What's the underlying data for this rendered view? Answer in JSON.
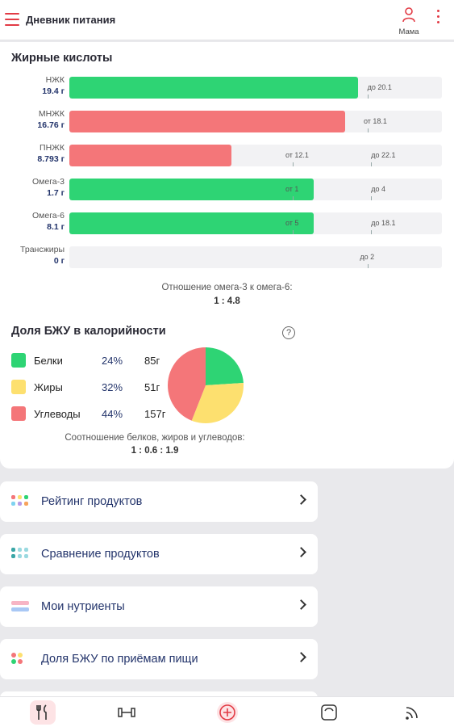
{
  "header": {
    "title": "Дневник питания",
    "user_label": "Мама"
  },
  "fatty_acids": {
    "title": "Жирные кислоты",
    "rows": [
      {
        "name": "НЖК",
        "value": "19.4 г",
        "color": "green",
        "fill_fraction": 0.775,
        "labels": [
          {
            "text": "до 20.1",
            "at": 0.8
          }
        ],
        "ticks": [
          0.8
        ]
      },
      {
        "name": "МНЖК",
        "value": "16.76 г",
        "color": "red",
        "fill_fraction": 0.74,
        "labels": [
          {
            "text": "от 18.1",
            "at": 0.79
          }
        ],
        "ticks": [
          0.8
        ]
      },
      {
        "name": "ПНЖК",
        "value": "8.793 г",
        "color": "red",
        "fill_fraction": 0.435,
        "labels": [
          {
            "text": "от 12.1",
            "at": 0.58
          },
          {
            "text": "до 22.1",
            "at": 0.81
          }
        ],
        "ticks": [
          0.6,
          0.81
        ]
      },
      {
        "name": "Омега-3",
        "value": "1.7 г",
        "color": "green",
        "fill_fraction": 0.655,
        "labels": [
          {
            "text": "от 1",
            "at": 0.58
          },
          {
            "text": "до 4",
            "at": 0.81
          }
        ],
        "ticks": [
          0.6,
          0.81
        ]
      },
      {
        "name": "Омега-6",
        "value": "8.1 г",
        "color": "green",
        "fill_fraction": 0.655,
        "labels": [
          {
            "text": "от 5",
            "at": 0.58
          },
          {
            "text": "до 18.1",
            "at": 0.81
          }
        ],
        "ticks": [
          0.6,
          0.81
        ]
      },
      {
        "name": "Трансжиры",
        "value": "0 г",
        "color": "none",
        "fill_fraction": 0,
        "labels": [
          {
            "text": "до 2",
            "at": 0.78
          }
        ],
        "ticks": [
          0.8
        ]
      }
    ],
    "ratio_caption": "Отношение омега-3 к омега-6:",
    "ratio_value": "1 : 4.8"
  },
  "bju": {
    "title": "Доля БЖУ в калорийности",
    "items": [
      {
        "name": "Белки",
        "pct": "24%",
        "grams": "85г",
        "color": "#2ed474"
      },
      {
        "name": "Жиры",
        "pct": "32%",
        "grams": "51г",
        "color": "#fde06f"
      },
      {
        "name": "Углеводы",
        "pct": "44%",
        "grams": "157г",
        "color": "#f47679"
      }
    ],
    "ratio_caption": "Соотношение белков, жиров и углеводов:",
    "ratio_value": "1 : 0.6 : 1.9"
  },
  "chart_data": {
    "type": "pie",
    "categories": [
      "Белки",
      "Жиры",
      "Углеводы"
    ],
    "values": [
      24,
      32,
      44
    ]
  },
  "menu": {
    "items": [
      {
        "label": "Рейтинг продуктов"
      },
      {
        "label": "Сравнение продуктов"
      },
      {
        "label": "Мои нутриенты"
      },
      {
        "label": "Доля БЖУ по приёмам пищи"
      }
    ]
  },
  "bottom_nav": {
    "items": [
      {
        "icon": "fork-knife-icon",
        "active": true
      },
      {
        "icon": "dumbbell-icon",
        "active": false
      },
      {
        "icon": "add-circle-icon",
        "active": false
      },
      {
        "icon": "scale-icon",
        "active": false
      },
      {
        "icon": "feed-icon",
        "active": false
      }
    ]
  }
}
